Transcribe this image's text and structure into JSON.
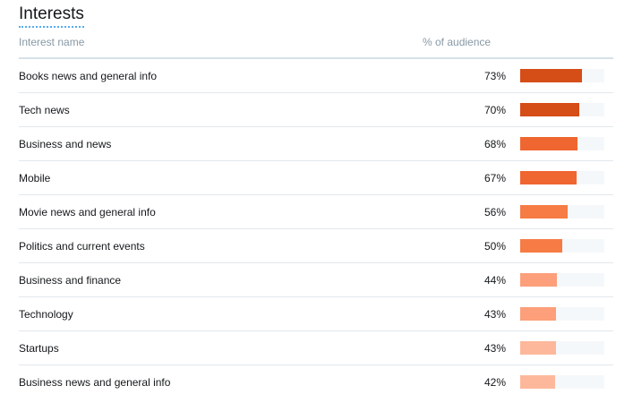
{
  "section": {
    "title": "Interests"
  },
  "table": {
    "columns": {
      "name": "Interest name",
      "percent": "% of audience"
    },
    "rows": [
      {
        "name": "Books news and general info",
        "percent_label": "73%",
        "value": 73,
        "color": "#d54d17"
      },
      {
        "name": "Tech news",
        "percent_label": "70%",
        "value": 70,
        "color": "#d54d17"
      },
      {
        "name": "Business and news",
        "percent_label": "68%",
        "value": 68,
        "color": "#ef6630"
      },
      {
        "name": "Mobile",
        "percent_label": "67%",
        "value": 67,
        "color": "#ef6630"
      },
      {
        "name": "Movie news and general info",
        "percent_label": "56%",
        "value": 56,
        "color": "#f67b44"
      },
      {
        "name": "Politics and current events",
        "percent_label": "50%",
        "value": 50,
        "color": "#f67b44"
      },
      {
        "name": "Business and finance",
        "percent_label": "44%",
        "value": 44,
        "color": "#fc9f7a"
      },
      {
        "name": "Technology",
        "percent_label": "43%",
        "value": 43,
        "color": "#fc9f7a"
      },
      {
        "name": "Startups",
        "percent_label": "43%",
        "value": 43,
        "color": "#fdb89b"
      },
      {
        "name": "Business news and general info",
        "percent_label": "42%",
        "value": 42,
        "color": "#fdb89b"
      }
    ]
  }
}
